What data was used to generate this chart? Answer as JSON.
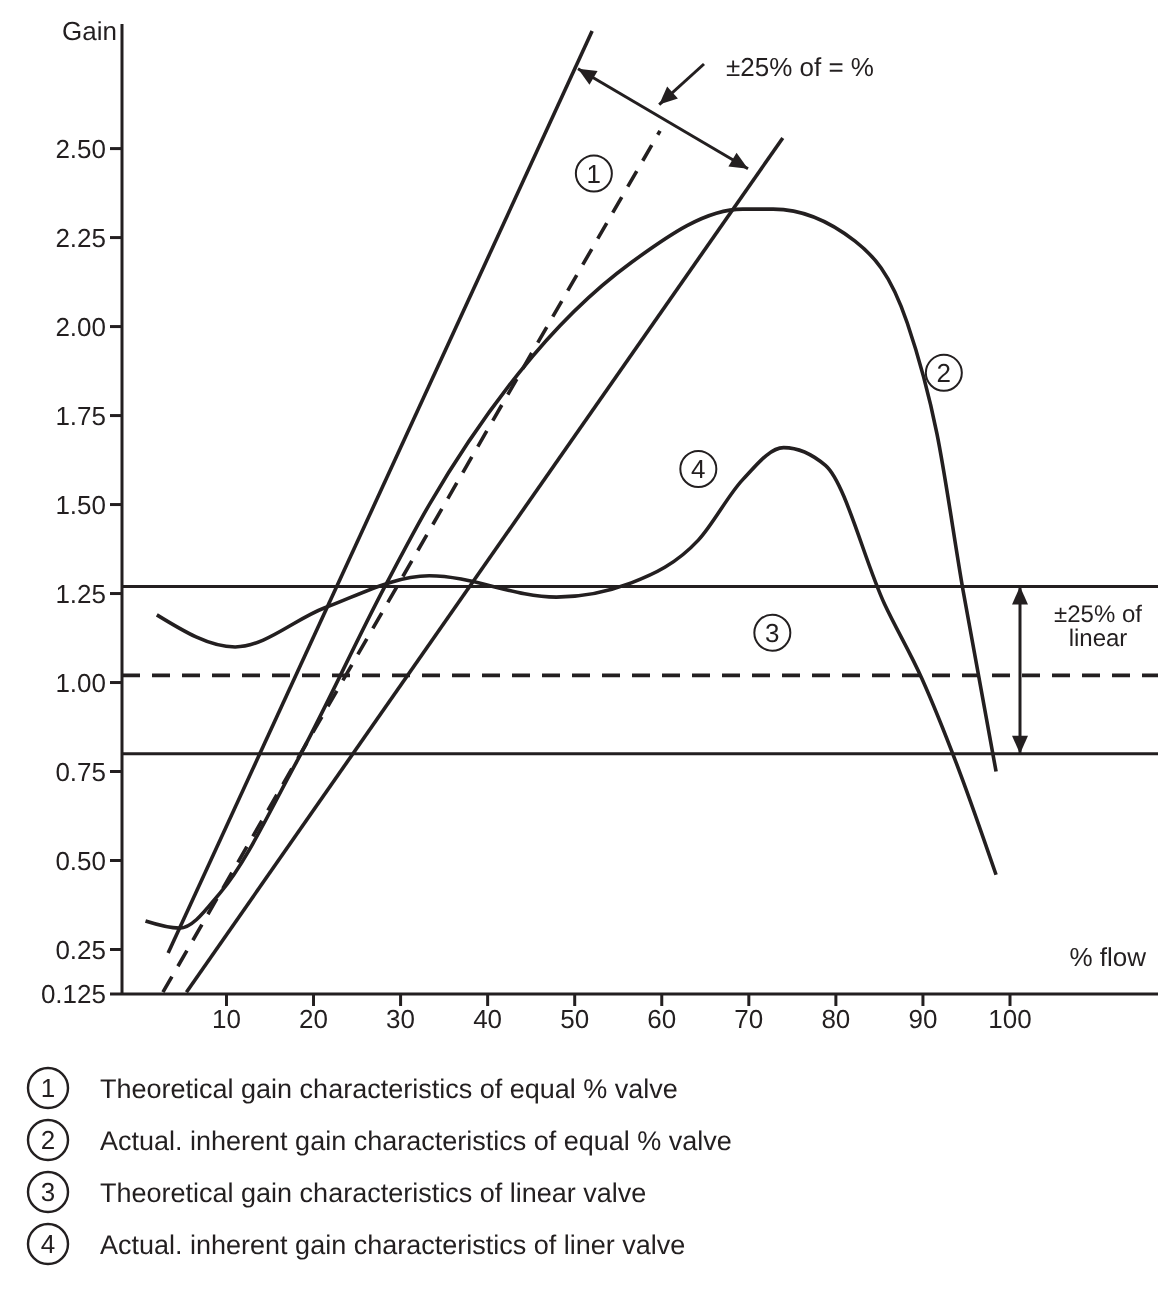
{
  "chart_data": {
    "type": "line",
    "xlabel": "% flow",
    "ylabel": "Gain",
    "xlim": [
      -2,
      117
    ],
    "ylim": [
      0.125,
      2.85
    ],
    "xticks": [
      10,
      20,
      30,
      40,
      50,
      60,
      70,
      80,
      90,
      100
    ],
    "yticks": [
      0.125,
      0.25,
      {
        "value": 0.5,
        "label": "0.50"
      },
      0.75,
      {
        "value": 1,
        "label": "1.00"
      },
      1.25,
      {
        "value": 1.5,
        "label": "1.50"
      },
      1.75,
      {
        "value": 2,
        "label": "2.00"
      },
      2.25,
      {
        "value": 2.5,
        "label": "2.50"
      }
    ],
    "grid": false,
    "legend": "bottom",
    "marker": "none",
    "series": [
      {
        "color": "#231f20",
        "x": [
          3.3,
          52
        ],
        "values": [
          0.24,
          2.83
        ]
      },
      {
        "color": "#231f20",
        "x": [
          5.4,
          73.9
        ],
        "values": [
          0.13,
          2.53
        ]
      },
      {
        "name": "Theoretical gain characteristics of equal % valve",
        "color": "#231f20",
        "line_style": "dashed",
        "x": [
          2.7,
          59.8
        ],
        "values": [
          0.13,
          2.55
        ]
      },
      {
        "name": "Actual. inherent gain characteristics of equal % valve",
        "color": "#231f20",
        "x": [
          0.7,
          4.6,
          9.3,
          17.9,
          28.2,
          33.3,
          43.6,
          56.5,
          69.3,
          72.8,
          82.2,
          88.2,
          91.6,
          94.6,
          98.4
        ],
        "values": [
          0.33,
          0.31,
          0.41,
          0.77,
          1.27,
          1.5,
          1.87,
          2.18,
          2.33,
          2.33,
          2.24,
          2.01,
          1.7,
          1.26,
          0.75
        ]
      },
      {
        "name": "Theoretical gain characteristics of linear valve",
        "color": "#231f20",
        "line_style": "dashed",
        "x": [
          -2,
          117
        ],
        "values": [
          1.02,
          1.02
        ]
      },
      {
        "name": "Actual. inherent gain characteristics of liner valve",
        "color": "#231f20",
        "x": [
          2,
          11,
          21.3,
          33.3,
          47.9,
          56.5,
          64.2,
          69.3,
          74,
          78.8,
          85.6,
          89.9,
          94.2,
          98.4
        ],
        "values": [
          1.19,
          1.1,
          1.21,
          1.3,
          1.24,
          1.28,
          1.4,
          1.57,
          1.66,
          1.61,
          1.22,
          1.01,
          0.75,
          0.46
        ]
      }
    ],
    "ref_lines": [
      {
        "axis": "y",
        "value": 1.27,
        "color": "#231f20"
      },
      {
        "axis": "y",
        "value": 0.8,
        "color": "#231f20"
      }
    ],
    "annotations": [
      {
        "text": "1",
        "x": 52.2,
        "y": 2.43
      },
      {
        "text": "2",
        "x": 92.4,
        "y": 1.87
      },
      {
        "text": "3",
        "x": 72.7,
        "y": 1.14
      },
      {
        "text": "4",
        "x": 64.2,
        "y": 1.6
      },
      "±25% of = %",
      "±25% of linear"
    ]
  }
}
